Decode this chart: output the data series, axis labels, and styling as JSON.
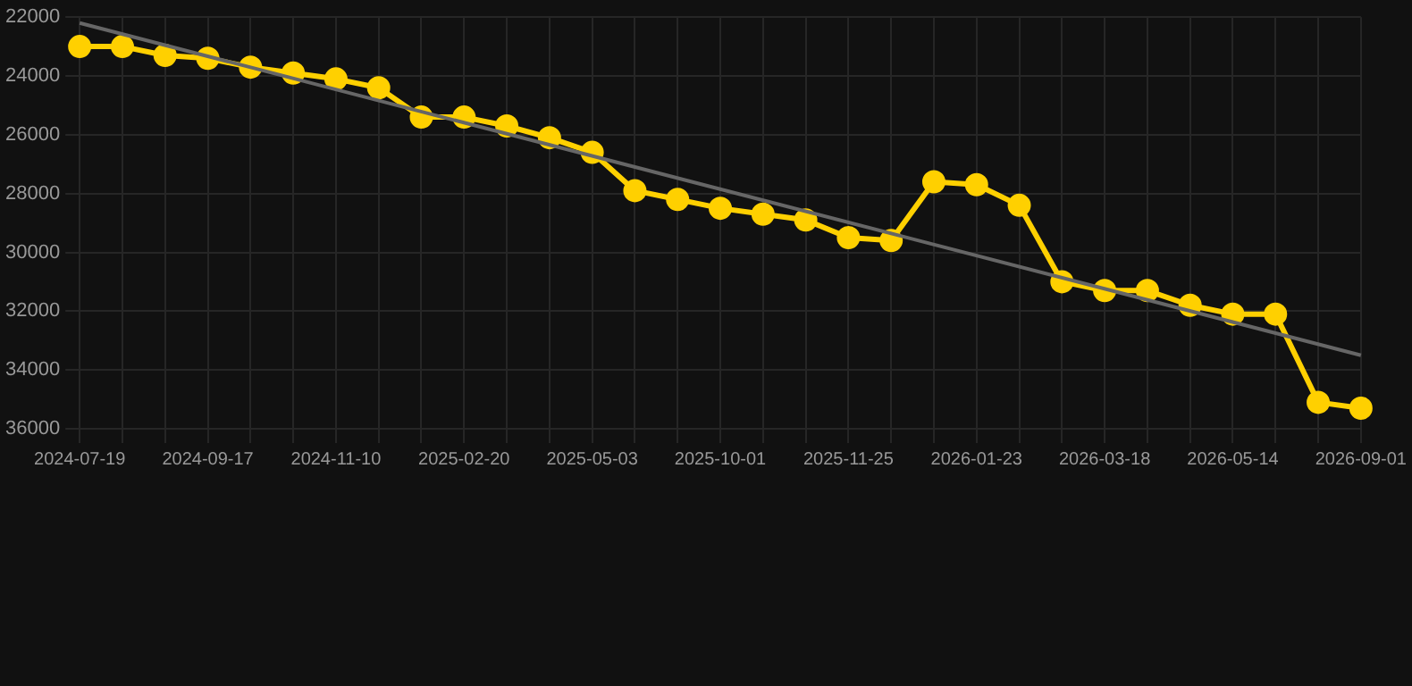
{
  "chart_data": {
    "type": "line",
    "categories": [
      "2024-07-19",
      null,
      null,
      "2024-09-17",
      null,
      null,
      "2024-11-10",
      null,
      null,
      "2025-02-20",
      null,
      null,
      "2025-05-03",
      null,
      null,
      "2025-10-01",
      null,
      null,
      "2025-11-25",
      null,
      null,
      "2026-01-23",
      null,
      null,
      "2026-03-18",
      null,
      null,
      "2026-05-14",
      null,
      null,
      "2026-09-01"
    ],
    "series": [
      {
        "color": "#ffd000",
        "marker": "circle",
        "values": [
          23000,
          23000,
          23300,
          23400,
          23700,
          23900,
          24100,
          24400,
          25400,
          25400,
          25700,
          26100,
          26600,
          27900,
          28200,
          28500,
          28700,
          28900,
          29500,
          29600,
          27600,
          27700,
          28400,
          31000,
          31300,
          31300,
          31800,
          32100,
          32100,
          35100,
          35300
        ]
      },
      {
        "type": "line",
        "color": "#666666",
        "marker": "none",
        "values": [
          22200,
          null,
          null,
          null,
          null,
          null,
          null,
          null,
          null,
          null,
          null,
          null,
          null,
          null,
          null,
          null,
          null,
          null,
          null,
          null,
          null,
          null,
          null,
          null,
          null,
          null,
          null,
          null,
          null,
          null,
          33500
        ]
      }
    ],
    "ylim": [
      36000,
      22000
    ],
    "yticks": [
      22000,
      24000,
      26000,
      28000,
      30000,
      32000,
      34000,
      36000
    ],
    "grid": true,
    "legend": false
  }
}
